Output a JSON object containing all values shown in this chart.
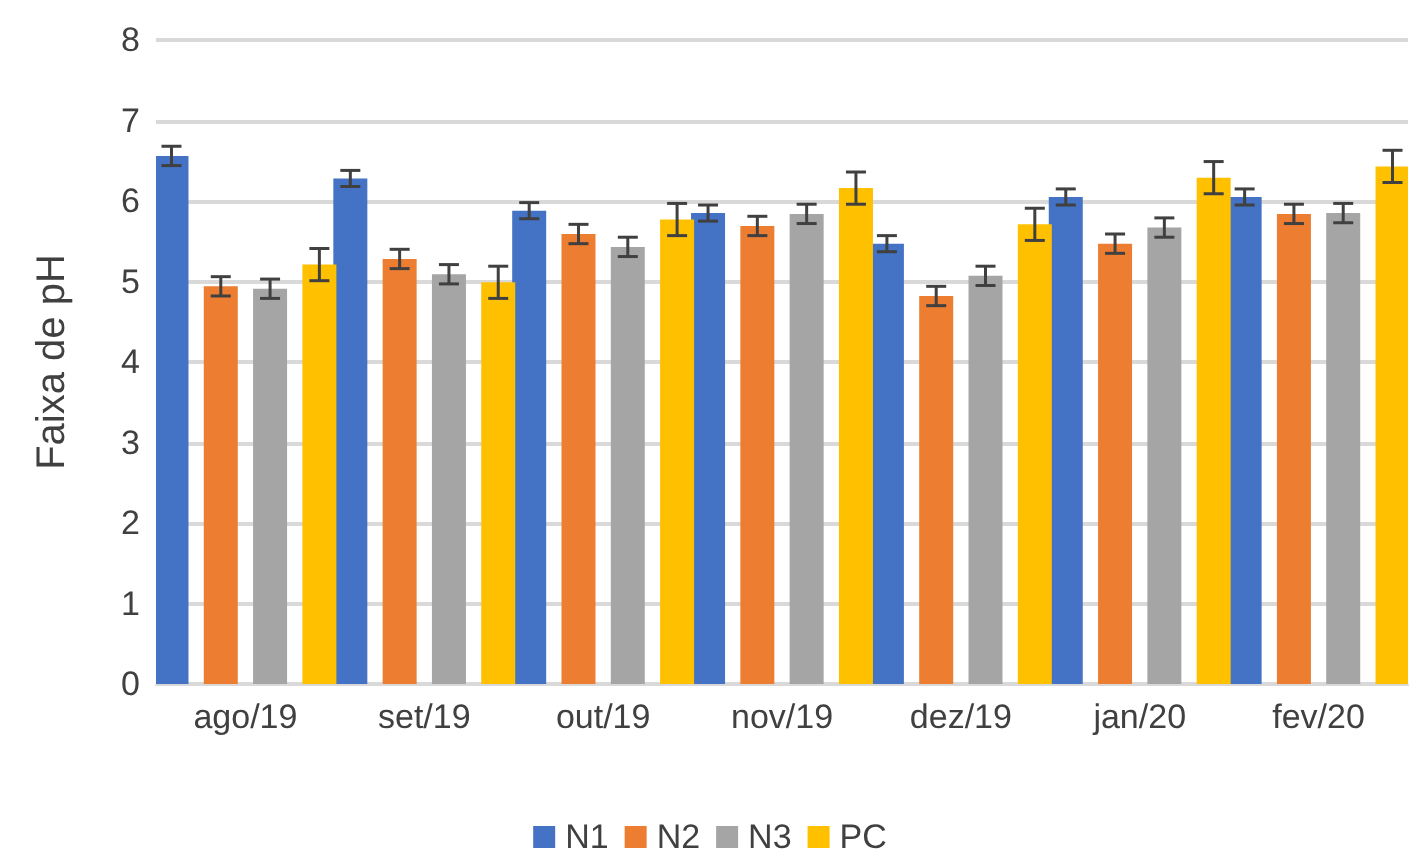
{
  "chart_data": {
    "type": "bar",
    "ylabel": "Faixa de pH",
    "categories": [
      "ago/19",
      "set/19",
      "out/19",
      "nov/19",
      "dez/19",
      "jan/20",
      "fev/20"
    ],
    "series": [
      {
        "name": "N1",
        "color": "#4472c4",
        "values": [
          6.56,
          6.28,
          5.88,
          5.85,
          5.47,
          6.05,
          6.05
        ],
        "errors": [
          0.12,
          0.1,
          0.1,
          0.1,
          0.1,
          0.1,
          0.1
        ]
      },
      {
        "name": "N2",
        "color": "#ed7d31",
        "values": [
          4.94,
          5.28,
          5.59,
          5.69,
          4.82,
          5.47,
          5.84
        ],
        "errors": [
          0.12,
          0.12,
          0.12,
          0.12,
          0.12,
          0.12,
          0.12
        ]
      },
      {
        "name": "N3",
        "color": "#a5a5a5",
        "values": [
          4.91,
          5.09,
          5.43,
          5.84,
          5.07,
          5.67,
          5.85
        ],
        "errors": [
          0.12,
          0.12,
          0.12,
          0.12,
          0.12,
          0.12,
          0.12
        ]
      },
      {
        "name": "PC",
        "color": "#ffc000",
        "values": [
          5.21,
          4.99,
          5.77,
          6.16,
          5.71,
          6.29,
          6.43
        ],
        "errors": [
          0.2,
          0.2,
          0.2,
          0.2,
          0.2,
          0.2,
          0.2
        ]
      }
    ],
    "ylim": [
      0,
      8
    ],
    "yticks": [
      0,
      1,
      2,
      3,
      4,
      5,
      6,
      7,
      8
    ],
    "grid": "y",
    "legend": "bottom"
  }
}
